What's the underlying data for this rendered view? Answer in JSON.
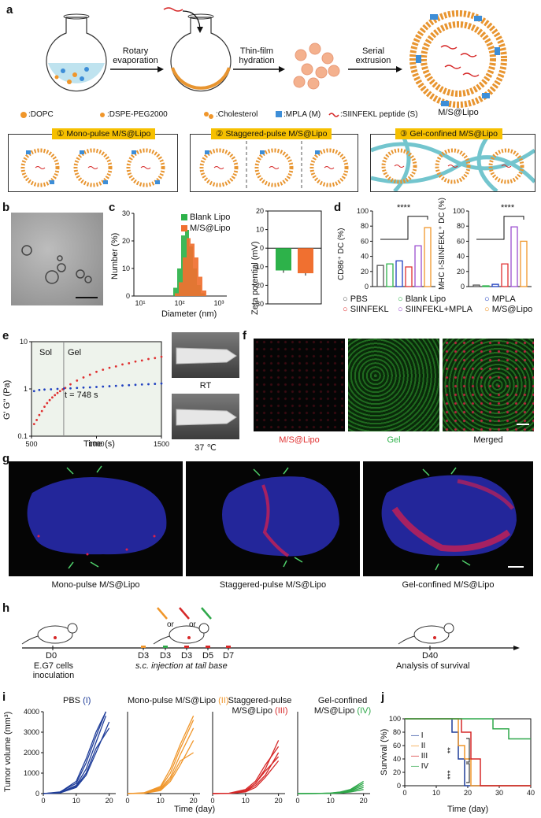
{
  "panels": {
    "a": "a",
    "b": "b",
    "c": "c",
    "d": "d",
    "e": "e",
    "f": "f",
    "g": "g",
    "h": "h",
    "i": "i",
    "j": "j"
  },
  "a": {
    "steps": [
      "Rotary evaporation",
      "Thin-film hydration",
      "Serial extrusion"
    ],
    "product": "M/S@Lipo",
    "legend": [
      ":DOPC",
      ":DSPE-PEG2000",
      ":Cholesterol",
      ":MPLA (M)",
      ":SIINFEKL peptide (S)"
    ],
    "modes": [
      "① Mono-pulse M/S@Lipo",
      "② Staggered-pulse M/S@Lipo",
      "③ Gel-confined M/S@Lipo"
    ]
  },
  "c": {
    "legend": [
      "Blank Lipo",
      "M/S@Lipo"
    ],
    "xlabel": "Diameter (nm)",
    "ylabel": "Number (%)",
    "zlabel": "Zeta potential (mV)"
  },
  "d": {
    "ylabel1": "CD86⁺ DC (%)",
    "ylabel2": "MHC I-SIINFEKL⁺ DC (%)",
    "sig": "****",
    "legend": [
      "PBS",
      "Blank Lipo",
      "MPLA",
      "SIINFEKL",
      "SIINFEKL+MPLA",
      "M/S@Lipo"
    ]
  },
  "e": {
    "ylabel": "G' G'' (Pa)",
    "xlabel": "Time (s)",
    "sol": "Sol",
    "gel": "Gel",
    "annot": "t = 748 s",
    "photos": [
      "RT",
      "37 ℃"
    ]
  },
  "f": {
    "captions": [
      "M/S@Lipo",
      "Gel",
      "Merged"
    ]
  },
  "g": {
    "captions": [
      "Mono-pulse M/S@Lipo",
      "Staggered-pulse M/S@Lipo",
      "Gel-confined M/S@Lipo"
    ]
  },
  "h": {
    "days": [
      "D0",
      "D3",
      "D3",
      "D3",
      "D5",
      "D7",
      "D40"
    ],
    "d0text": "E.G7 cells inoculation",
    "injtext": "s.c. injection at tail base",
    "d40text": "Analysis of survival",
    "or": "or"
  },
  "i": {
    "titles": [
      {
        "main": "PBS",
        "tag": "(I)"
      },
      {
        "main": "Mono-pulse M/S@Lipo",
        "tag": "(II)"
      },
      {
        "main": "Staggered-pulse M/S@Lipo",
        "tag": "(III)"
      },
      {
        "main": "Gel-confined M/S@Lipo",
        "tag": "(IV)"
      }
    ],
    "ylabel": "Tumor volume (mm³)",
    "xlabel": "Time (day)"
  },
  "j": {
    "ylabel": "Survival (%)",
    "xlabel": "Time (day)",
    "legend": [
      "I",
      "II",
      "III",
      "IV"
    ],
    "sig": [
      "**",
      "***"
    ]
  },
  "chart_data": [
    {
      "type": "bar",
      "panel": "c-histogram",
      "categories": [
        "30",
        "40",
        "50",
        "60",
        "70",
        "80",
        "100",
        "120"
      ],
      "series": [
        {
          "name": "Blank Lipo",
          "values": [
            3,
            10,
            22,
            24,
            18,
            10,
            4,
            1
          ],
          "color": "#2db24a"
        },
        {
          "name": "M/S@Lipo",
          "values": [
            1,
            5,
            14,
            21,
            19,
            14,
            7,
            2
          ],
          "color": "#f07030"
        }
      ],
      "xlabel": "Diameter (nm)",
      "ylabel": "Number (%)",
      "xticks": [
        "10¹",
        "10²",
        "10³"
      ],
      "yticks": [
        "0",
        "10",
        "20",
        "30"
      ],
      "ylim": [
        0,
        30
      ]
    },
    {
      "type": "bar",
      "panel": "c-zeta",
      "categories": [
        "Blank Lipo",
        "M/S@Lipo"
      ],
      "values": [
        -12,
        -13.5
      ],
      "ylabel": "Zeta potential (mV)",
      "yticks": [
        "-30",
        "-20",
        "-10",
        "0",
        "10",
        "20"
      ],
      "ylim": [
        -30,
        20
      ]
    },
    {
      "type": "bar",
      "panel": "d-cd86",
      "categories": [
        "PBS",
        "Blank Lipo",
        "MPLA",
        "SIINFEKL",
        "SIINFEKL+MPLA",
        "M/S@Lipo"
      ],
      "values": [
        28,
        30,
        34,
        26,
        54,
        78
      ],
      "ylabel": "CD86⁺ DC (%)",
      "yticks": [
        "0",
        "20",
        "40",
        "60",
        "80",
        "100"
      ],
      "ylim": [
        0,
        100
      ]
    },
    {
      "type": "bar",
      "panel": "d-mhc",
      "categories": [
        "PBS",
        "Blank Lipo",
        "MPLA",
        "SIINFEKL",
        "SIINFEKL+MPLA",
        "M/S@Lipo"
      ],
      "values": [
        2,
        1,
        3,
        30,
        79,
        60
      ],
      "ylabel": "MHC I-SIINFEKL⁺ DC (%)",
      "yticks": [
        "0",
        "20",
        "40",
        "60",
        "80",
        "100"
      ],
      "ylim": [
        0,
        100
      ]
    },
    {
      "type": "scatter",
      "panel": "e",
      "series": [
        {
          "name": "G'",
          "color": "#e03030",
          "x": [
            520,
            540,
            560,
            580,
            600,
            620,
            640,
            660,
            680,
            700,
            720,
            740,
            760,
            800,
            850,
            900,
            950,
            1000,
            1050,
            1100,
            1150,
            1200,
            1250,
            1300,
            1350,
            1400,
            1450,
            1500
          ],
          "y": [
            0.18,
            0.22,
            0.28,
            0.34,
            0.42,
            0.5,
            0.58,
            0.66,
            0.74,
            0.82,
            0.9,
            0.98,
            1.05,
            1.25,
            1.5,
            1.75,
            2.0,
            2.3,
            2.55,
            2.8,
            3.0,
            3.3,
            3.5,
            3.8,
            4.0,
            4.3,
            4.5,
            4.8
          ]
        },
        {
          "name": "G''",
          "color": "#2040c0",
          "x": [
            520,
            560,
            600,
            650,
            700,
            750,
            800,
            850,
            900,
            950,
            1000,
            1050,
            1100,
            1150,
            1200,
            1250,
            1300,
            1350,
            1400,
            1450,
            1500
          ],
          "y": [
            0.9,
            0.95,
            0.97,
            0.98,
            1.0,
            1.02,
            1.03,
            1.05,
            1.07,
            1.08,
            1.1,
            1.12,
            1.14,
            1.16,
            1.18,
            1.2,
            1.22,
            1.24,
            1.26,
            1.28,
            1.3
          ]
        }
      ],
      "xlabel": "Time (s)",
      "ylabel": "G' G'' (Pa)",
      "xticks": [
        "500",
        "1000",
        "1500"
      ],
      "yticks": [
        "0.1",
        "1",
        "10"
      ],
      "xlim": [
        500,
        1500
      ],
      "ylim": [
        0.1,
        10
      ],
      "yscale": "log"
    },
    {
      "type": "line",
      "panel": "i",
      "groups": [
        {
          "name": "I",
          "color": "#1f3d99",
          "curves": [
            {
              "x": [
                0,
                5,
                10,
                13,
                16,
                19
              ],
              "y": [
                0,
                50,
                400,
                1200,
                2500,
                3800
              ]
            },
            {
              "x": [
                0,
                5,
                10,
                13,
                16,
                19
              ],
              "y": [
                0,
                80,
                500,
                1500,
                2800,
                4000
              ]
            },
            {
              "x": [
                0,
                5,
                10,
                13,
                16,
                20
              ],
              "y": [
                0,
                30,
                300,
                900,
                2000,
                3500
              ]
            },
            {
              "x": [
                0,
                5,
                10,
                13,
                16,
                19
              ],
              "y": [
                0,
                60,
                600,
                1700,
                3000,
                4000
              ]
            },
            {
              "x": [
                0,
                5,
                10,
                13,
                16,
                20
              ],
              "y": [
                0,
                40,
                350,
                1000,
                2200,
                3200
              ]
            }
          ]
        },
        {
          "name": "II",
          "color": "#f0962a",
          "curves": [
            {
              "x": [
                0,
                5,
                10,
                13,
                16,
                20
              ],
              "y": [
                0,
                30,
                250,
                800,
                1900,
                3200
              ]
            },
            {
              "x": [
                0,
                5,
                10,
                13,
                16,
                20
              ],
              "y": [
                0,
                20,
                300,
                1000,
                2200,
                3600
              ]
            },
            {
              "x": [
                0,
                5,
                10,
                13,
                16,
                20
              ],
              "y": [
                0,
                10,
                150,
                600,
                1400,
                2600
              ]
            },
            {
              "x": [
                0,
                5,
                10,
                13,
                16,
                20
              ],
              "y": [
                0,
                20,
                200,
                700,
                1600,
                2000
              ]
            },
            {
              "x": [
                0,
                5,
                10,
                13,
                16,
                20
              ],
              "y": [
                0,
                40,
                350,
                1200,
                2400,
                3800
              ]
            }
          ]
        },
        {
          "name": "III",
          "color": "#d62828",
          "curves": [
            {
              "x": [
                0,
                5,
                10,
                13,
                16,
                20
              ],
              "y": [
                0,
                10,
                150,
                500,
                1200,
                2600
              ]
            },
            {
              "x": [
                0,
                5,
                10,
                13,
                16,
                20
              ],
              "y": [
                0,
                10,
                100,
                400,
                900,
                2000
              ]
            },
            {
              "x": [
                0,
                5,
                10,
                13,
                16,
                20
              ],
              "y": [
                0,
                20,
                200,
                600,
                1400,
                2300
              ]
            },
            {
              "x": [
                0,
                5,
                10,
                13,
                16,
                20
              ],
              "y": [
                0,
                5,
                80,
                300,
                800,
                1600
              ]
            },
            {
              "x": [
                0,
                5,
                10,
                13,
                16,
                20
              ],
              "y": [
                0,
                10,
                120,
                500,
                1100,
                1800
              ]
            }
          ]
        },
        {
          "name": "IV",
          "color": "#2fa84a",
          "curves": [
            {
              "x": [
                0,
                5,
                10,
                13,
                16,
                20
              ],
              "y": [
                0,
                5,
                30,
                80,
                200,
                600
              ]
            },
            {
              "x": [
                0,
                5,
                10,
                13,
                16,
                20
              ],
              "y": [
                0,
                5,
                20,
                60,
                150,
                400
              ]
            },
            {
              "x": [
                0,
                5,
                10,
                13,
                16,
                20
              ],
              "y": [
                0,
                2,
                15,
                40,
                120,
                300
              ]
            },
            {
              "x": [
                0,
                5,
                10,
                13,
                16,
                20
              ],
              "y": [
                0,
                5,
                25,
                70,
                180,
                500
              ]
            },
            {
              "x": [
                0,
                5,
                10,
                13,
                16,
                20
              ],
              "y": [
                0,
                3,
                10,
                30,
                80,
                200
              ]
            }
          ]
        }
      ],
      "xlabel": "Time (day)",
      "ylabel": "Tumor volume (mm³)",
      "xticks": [
        "0",
        "10",
        "20"
      ],
      "yticks": [
        "0",
        "1000",
        "2000",
        "3000",
        "4000"
      ],
      "xlim": [
        0,
        22
      ],
      "ylim": [
        0,
        4000
      ]
    },
    {
      "type": "line",
      "panel": "j",
      "series": [
        {
          "name": "I",
          "color": "#1f3d99",
          "x": [
            0,
            15,
            15,
            17,
            17,
            19,
            19,
            40
          ],
          "y": [
            100,
            100,
            80,
            80,
            40,
            40,
            0,
            0
          ]
        },
        {
          "name": "II",
          "color": "#f0962a",
          "x": [
            0,
            17,
            17,
            19,
            19,
            21,
            21,
            40
          ],
          "y": [
            100,
            100,
            60,
            60,
            40,
            40,
            0,
            0
          ]
        },
        {
          "name": "III",
          "color": "#d62828",
          "x": [
            0,
            18,
            18,
            21,
            21,
            24,
            24,
            40
          ],
          "y": [
            100,
            100,
            80,
            80,
            40,
            40,
            0,
            0
          ]
        },
        {
          "name": "IV",
          "color": "#2fa84a",
          "x": [
            0,
            28,
            28,
            33,
            33,
            40
          ],
          "y": [
            100,
            100,
            85,
            85,
            70,
            70
          ]
        }
      ],
      "xlabel": "Time (day)",
      "ylabel": "Survival (%)",
      "xticks": [
        "0",
        "10",
        "20",
        "30",
        "40"
      ],
      "yticks": [
        "0",
        "20",
        "40",
        "60",
        "80",
        "100"
      ],
      "xlim": [
        0,
        40
      ],
      "ylim": [
        0,
        100
      ]
    }
  ]
}
